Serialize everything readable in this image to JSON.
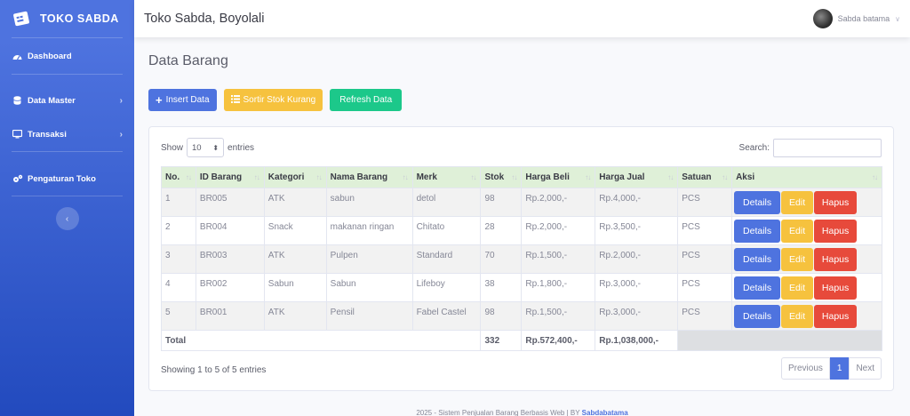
{
  "brand": {
    "name": "TOKO SABDA",
    "icon": "store-icon"
  },
  "sidebar": {
    "items": [
      {
        "label": "Dashboard",
        "icon": "tachometer-icon"
      },
      {
        "label": "Data Master",
        "icon": "database-icon"
      },
      {
        "label": "Transaksi",
        "icon": "desktop-icon"
      },
      {
        "label": "Pengaturan Toko",
        "icon": "cogs-icon"
      }
    ]
  },
  "topbar": {
    "title": "Toko Sabda, Boyolali",
    "user": "Sabda batama"
  },
  "page": {
    "title": "Data Barang"
  },
  "buttons": {
    "insert": "Insert Data",
    "sort": "Sortir Stok Kurang",
    "refresh": "Refresh Data"
  },
  "table_controls": {
    "show": "Show",
    "entries_value": "10",
    "entries": "entries",
    "search": "Search:"
  },
  "table": {
    "headers": [
      "No.",
      "ID Barang",
      "Kategori",
      "Nama Barang",
      "Merk",
      "Stok",
      "Harga Beli",
      "Harga Jual",
      "Satuan",
      "Aksi"
    ],
    "rows": [
      [
        "1",
        "BR005",
        "ATK",
        "sabun",
        "detol",
        "98",
        "Rp.2,000,-",
        "Rp.4,000,-",
        "PCS"
      ],
      [
        "2",
        "BR004",
        "Snack",
        "makanan ringan",
        "Chitato",
        "28",
        "Rp.2,000,-",
        "Rp.3,500,-",
        "PCS"
      ],
      [
        "3",
        "BR003",
        "ATK",
        "Pulpen",
        "Standard",
        "70",
        "Rp.1,500,-",
        "Rp.2,000,-",
        "PCS"
      ],
      [
        "4",
        "BR002",
        "Sabun",
        "Sabun",
        "Lifeboy",
        "38",
        "Rp.1,800,-",
        "Rp.3,000,-",
        "PCS"
      ],
      [
        "5",
        "BR001",
        "ATK",
        "Pensil",
        "Fabel Castel",
        "98",
        "Rp.1,500,-",
        "Rp.3,000,-",
        "PCS"
      ]
    ],
    "actions": {
      "details": "Details",
      "edit": "Edit",
      "delete": "Hapus"
    },
    "total": {
      "label": "Total",
      "stok": "332",
      "harga_beli": "Rp.572,400,-",
      "harga_jual": "Rp.1,038,000,-"
    }
  },
  "footer_info": {
    "showing": "Showing 1 to 5 of 5 entries"
  },
  "pagination": {
    "previous": "Previous",
    "page": "1",
    "next": "Next"
  },
  "footer": {
    "text": "2025 - Sistem Penjualan Barang Berbasis Web | BY",
    "author": "Sabdabatama"
  },
  "colors": {
    "primary": "#4e73df",
    "warning": "#f6c23e",
    "success": "#1cc88a",
    "danger": "#e74a3b",
    "header": "#dff0d8"
  }
}
